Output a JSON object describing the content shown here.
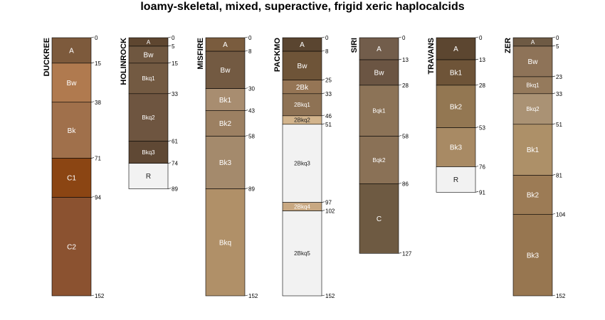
{
  "chart_data": {
    "type": "soil-profile-sketch",
    "title": "loamy-skeletal, mixed, superactive, frigid xeric haplocalcids",
    "depth_unit": "cm",
    "profiles": [
      {
        "name": "DUCKREE",
        "horizons": [
          {
            "name": "A",
            "top": 0,
            "bottom": 15,
            "color": "#7D5A3C"
          },
          {
            "name": "Bw",
            "top": 15,
            "bottom": 38,
            "color": "#B07A4F"
          },
          {
            "name": "Bk",
            "top": 38,
            "bottom": 71,
            "color": "#A0704B"
          },
          {
            "name": "C1",
            "top": 71,
            "bottom": 94,
            "color": "#8B4513"
          },
          {
            "name": "C2",
            "top": 94,
            "bottom": 152,
            "color": "#8B5230"
          }
        ]
      },
      {
        "name": "HOLINROCK",
        "horizons": [
          {
            "name": "A",
            "top": 0,
            "bottom": 5,
            "color": "#5E4630"
          },
          {
            "name": "Bw",
            "top": 5,
            "bottom": 15,
            "color": "#6F5740"
          },
          {
            "name": "Bkq1",
            "top": 15,
            "bottom": 33,
            "color": "#735A42"
          },
          {
            "name": "Bkq2",
            "top": 33,
            "bottom": 61,
            "color": "#6E5540"
          },
          {
            "name": "Bkq3",
            "top": 61,
            "bottom": 74,
            "color": "#5F4834"
          },
          {
            "name": "R",
            "top": 74,
            "bottom": 89,
            "color": "#F2F2F2"
          }
        ]
      },
      {
        "name": "MISFIRE",
        "horizons": [
          {
            "name": "A",
            "top": 0,
            "bottom": 8,
            "color": "#7A5C3E"
          },
          {
            "name": "Bw",
            "top": 8,
            "bottom": 30,
            "color": "#735A42"
          },
          {
            "name": "Bk1",
            "top": 30,
            "bottom": 43,
            "color": "#A88D70"
          },
          {
            "name": "Bk2",
            "top": 43,
            "bottom": 58,
            "color": "#9C8062"
          },
          {
            "name": "Bk3",
            "top": 58,
            "bottom": 89,
            "color": "#A48A6C"
          },
          {
            "name": "Bkq",
            "top": 89,
            "bottom": 152,
            "color": "#B09068"
          }
        ]
      },
      {
        "name": "PACKMO",
        "horizons": [
          {
            "name": "A",
            "top": 0,
            "bottom": 8,
            "color": "#5A4530"
          },
          {
            "name": "Bw",
            "top": 8,
            "bottom": 25,
            "color": "#6E5438"
          },
          {
            "name": "2Bk",
            "top": 25,
            "bottom": 33,
            "color": "#957555"
          },
          {
            "name": "2Bkq1",
            "top": 33,
            "bottom": 46,
            "color": "#8E7254"
          },
          {
            "name": "2Bkq2",
            "top": 46,
            "bottom": 51,
            "color": "#D2B48C"
          },
          {
            "name": "2Bkq3",
            "top": 51,
            "bottom": 97,
            "color": "#F2F2F2"
          },
          {
            "name": "2Bkq4",
            "top": 97,
            "bottom": 102,
            "color": "#C8A882"
          },
          {
            "name": "2Bkq5",
            "top": 102,
            "bottom": 152,
            "color": "#F2F2F2"
          }
        ]
      },
      {
        "name": "SIRI",
        "horizons": [
          {
            "name": "A",
            "top": 0,
            "bottom": 13,
            "color": "#725D4B"
          },
          {
            "name": "Bw",
            "top": 13,
            "bottom": 28,
            "color": "#6B5543"
          },
          {
            "name": "Bqk1",
            "top": 28,
            "bottom": 58,
            "color": "#8C7357"
          },
          {
            "name": "Bqk2",
            "top": 58,
            "bottom": 86,
            "color": "#8A7156"
          },
          {
            "name": "C",
            "top": 86,
            "bottom": 127,
            "color": "#6E5A42"
          }
        ]
      },
      {
        "name": "TRAVANS",
        "horizons": [
          {
            "name": "A",
            "top": 0,
            "bottom": 13,
            "color": "#5C4630"
          },
          {
            "name": "Bk1",
            "top": 13,
            "bottom": 28,
            "color": "#6E5438"
          },
          {
            "name": "Bk2",
            "top": 28,
            "bottom": 53,
            "color": "#937752"
          },
          {
            "name": "Bk3",
            "top": 53,
            "bottom": 76,
            "color": "#A88A64"
          },
          {
            "name": "R",
            "top": 76,
            "bottom": 91,
            "color": "#F2F2F2"
          }
        ]
      },
      {
        "name": "ZER",
        "horizons": [
          {
            "name": "A",
            "top": 0,
            "bottom": 5,
            "color": "#6E5A44"
          },
          {
            "name": "Bw",
            "top": 5,
            "bottom": 23,
            "color": "#8E7358"
          },
          {
            "name": "Bkq1",
            "top": 23,
            "bottom": 33,
            "color": "#957A5C"
          },
          {
            "name": "Bkq2",
            "top": 33,
            "bottom": 51,
            "color": "#AA9274"
          },
          {
            "name": "Bk1",
            "top": 51,
            "bottom": 81,
            "color": "#AD9068"
          },
          {
            "name": "Bk2",
            "top": 81,
            "bottom": 104,
            "color": "#9C7B55"
          },
          {
            "name": "Bk3",
            "top": 104,
            "bottom": 152,
            "color": "#977650"
          }
        ]
      }
    ]
  }
}
